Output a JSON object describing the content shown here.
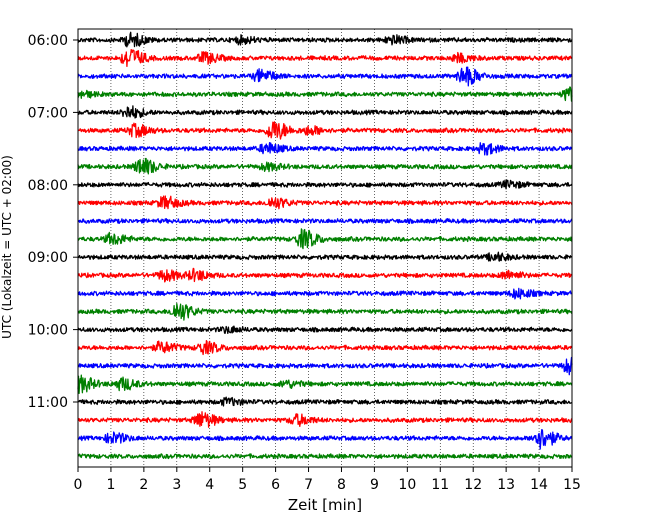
{
  "chart_data": {
    "type": "line",
    "subtype": "helicorder-seismogram",
    "xlabel": "Zeit  [min]",
    "ylabel": "UTC (Lokalzeit = UTC + 02:00)",
    "xlim": [
      0,
      15
    ],
    "x_ticks": [
      "0",
      "1",
      "2",
      "3",
      "4",
      "5",
      "6",
      "7",
      "8",
      "9",
      "10",
      "11",
      "12",
      "13",
      "14",
      "15"
    ],
    "y_tick_labels": [
      "06:00",
      "07:00",
      "08:00",
      "09:00",
      "10:00",
      "11:00"
    ],
    "grid": "vertical dotted at each minute",
    "trace_colors": [
      "#000000",
      "#ff0000",
      "#0000ff",
      "#008000"
    ],
    "traces": [
      {
        "start": "06:00",
        "events": [
          [
            1.55,
            1.0
          ],
          [
            4.9,
            0.5
          ],
          [
            9.5,
            0.6
          ]
        ]
      },
      {
        "start": "06:15",
        "events": [
          [
            1.5,
            1.5
          ],
          [
            3.8,
            0.8
          ],
          [
            11.5,
            0.6
          ]
        ]
      },
      {
        "start": "06:30",
        "events": [
          [
            5.5,
            0.9
          ],
          [
            11.7,
            1.4
          ]
        ]
      },
      {
        "start": "06:45",
        "events": [
          [
            0.0,
            0.5
          ],
          [
            14.9,
            1.1
          ]
        ]
      },
      {
        "start": "07:00",
        "events": [
          [
            1.5,
            0.9
          ]
        ]
      },
      {
        "start": "07:15",
        "events": [
          [
            1.7,
            0.9
          ],
          [
            5.9,
            1.5
          ],
          [
            7.0,
            0.6
          ]
        ]
      },
      {
        "start": "07:30",
        "events": [
          [
            5.7,
            0.8
          ],
          [
            12.3,
            0.8
          ]
        ]
      },
      {
        "start": "07:45",
        "events": [
          [
            1.9,
            1.3
          ],
          [
            5.7,
            0.5
          ]
        ]
      },
      {
        "start": "08:00",
        "events": [
          [
            13.0,
            0.5
          ]
        ]
      },
      {
        "start": "08:15",
        "events": [
          [
            2.6,
            0.9
          ],
          [
            5.9,
            0.8
          ]
        ]
      },
      {
        "start": "08:30",
        "events": []
      },
      {
        "start": "08:45",
        "events": [
          [
            1.0,
            0.8
          ],
          [
            6.8,
            1.4
          ]
        ]
      },
      {
        "start": "09:00",
        "events": [
          [
            12.6,
            0.6
          ]
        ]
      },
      {
        "start": "09:15",
        "events": [
          [
            2.6,
            0.8
          ],
          [
            3.5,
            0.8
          ],
          [
            13.0,
            0.6
          ]
        ]
      },
      {
        "start": "09:30",
        "events": [
          [
            13.3,
            0.7
          ]
        ]
      },
      {
        "start": "09:45",
        "events": [
          [
            3.0,
            1.4
          ]
        ]
      },
      {
        "start": "10:00",
        "events": [
          [
            4.5,
            0.4
          ]
        ]
      },
      {
        "start": "10:15",
        "events": [
          [
            2.5,
            0.8
          ],
          [
            3.8,
            0.9
          ]
        ]
      },
      {
        "start": "10:30",
        "events": [
          [
            14.9,
            1.2
          ]
        ]
      },
      {
        "start": "10:45",
        "events": [
          [
            0.0,
            1.3
          ],
          [
            1.3,
            0.9
          ],
          [
            6.3,
            0.5
          ]
        ]
      },
      {
        "start": "11:00",
        "events": [
          [
            4.5,
            0.5
          ]
        ]
      },
      {
        "start": "11:15",
        "events": [
          [
            3.7,
            1.2
          ],
          [
            6.6,
            0.8
          ]
        ]
      },
      {
        "start": "11:30",
        "events": [
          [
            1.0,
            0.8
          ],
          [
            14.0,
            1.6
          ]
        ]
      },
      {
        "start": "11:45",
        "events": []
      }
    ]
  }
}
